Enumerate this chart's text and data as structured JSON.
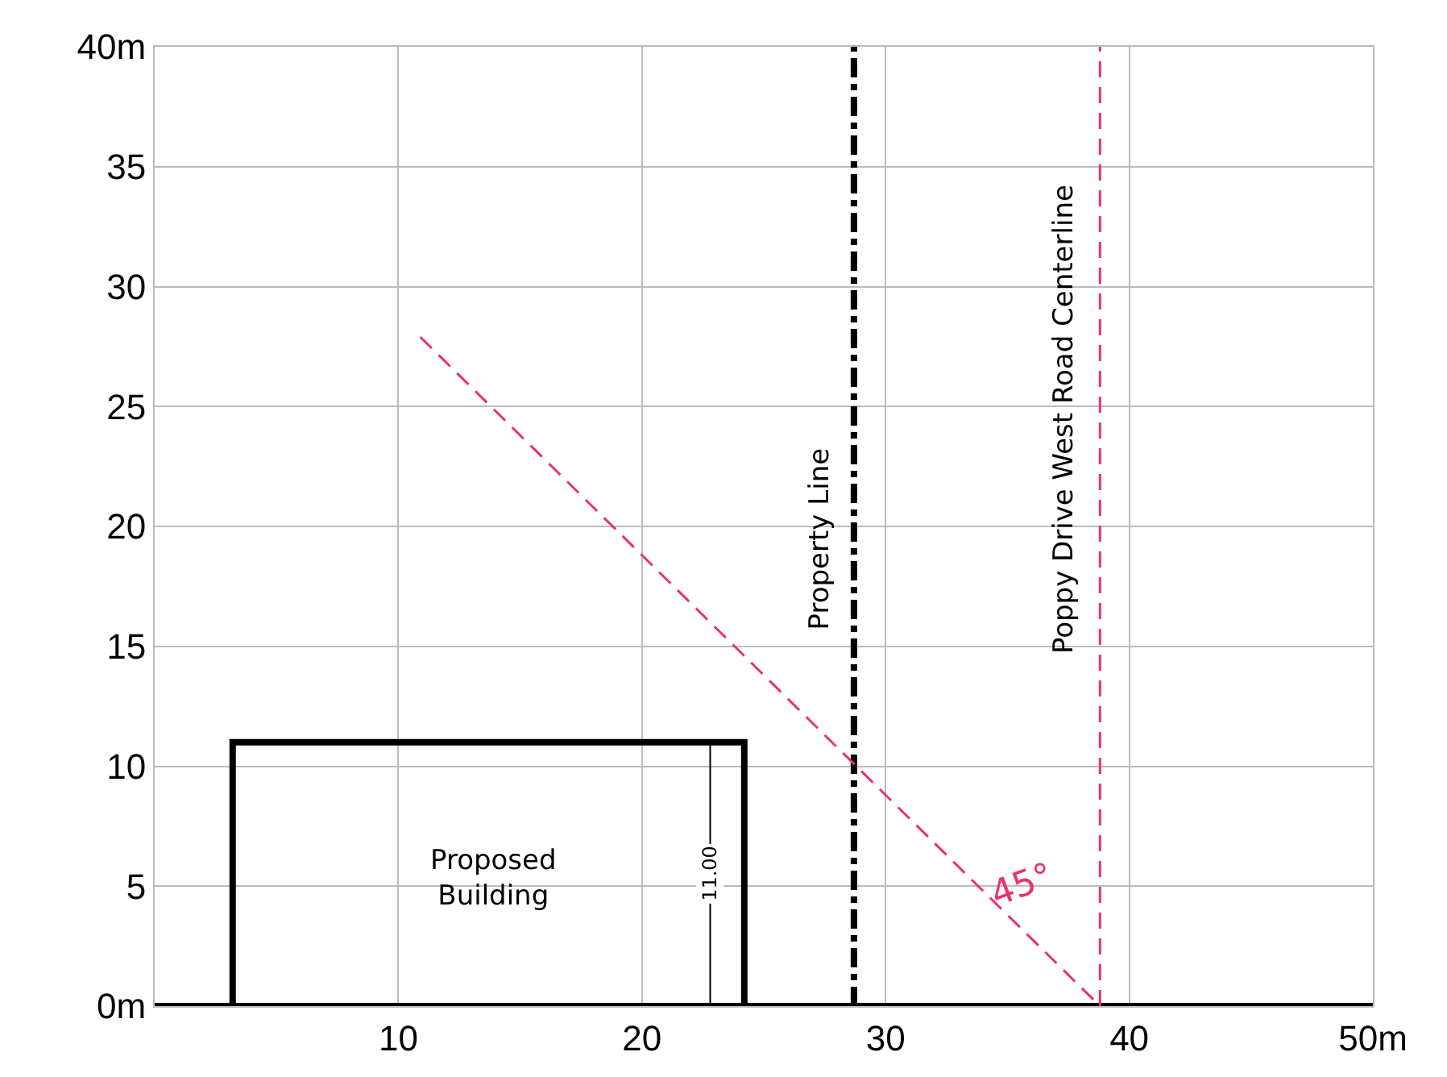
{
  "chart_data": {
    "type": "line",
    "xlim": [
      0,
      50
    ],
    "ylim": [
      0,
      40
    ],
    "xticks": [
      10,
      20,
      30,
      40,
      {
        "value": 50,
        "label": "50m"
      }
    ],
    "yticks": [
      {
        "value": 0,
        "label": "0m"
      },
      5,
      10,
      15,
      20,
      25,
      30,
      35,
      {
        "value": 40,
        "label": "40m"
      }
    ],
    "grid": true,
    "marker": "none",
    "series": [
      {
        "color": "#000000",
        "line_style": "solid",
        "x": [
          0,
          50
        ],
        "values": [
          0,
          0
        ]
      },
      {
        "color": "#000000",
        "line_style": "solid",
        "x": [
          3.2,
          3.2,
          24.2,
          24.2
        ],
        "values": [
          0,
          11,
          11,
          0
        ]
      },
      {
        "color": "#000000",
        "line_style": "dashdot",
        "x": [
          28.7,
          28.7
        ],
        "values": [
          0,
          40
        ]
      },
      {
        "color": "#e8336b",
        "line_style": "dashed",
        "x": [
          38.8,
          38.8
        ],
        "values": [
          0,
          40
        ]
      },
      {
        "color": "#e8336b",
        "line_style": "dashed",
        "x": [
          10.9,
          38.8
        ],
        "values": [
          27.9,
          0
        ]
      },
      {
        "color": "#000000",
        "line_style": "solid",
        "x": [
          22.8,
          22.8
        ],
        "values": [
          0,
          11
        ]
      }
    ],
    "annotations": [
      "Proposed\nBuilding",
      {
        "text": "11.00",
        "x": 22.8,
        "y": 5.5
      },
      "Property Line",
      "Poppy Drive West Road Centerline",
      "45°"
    ]
  }
}
